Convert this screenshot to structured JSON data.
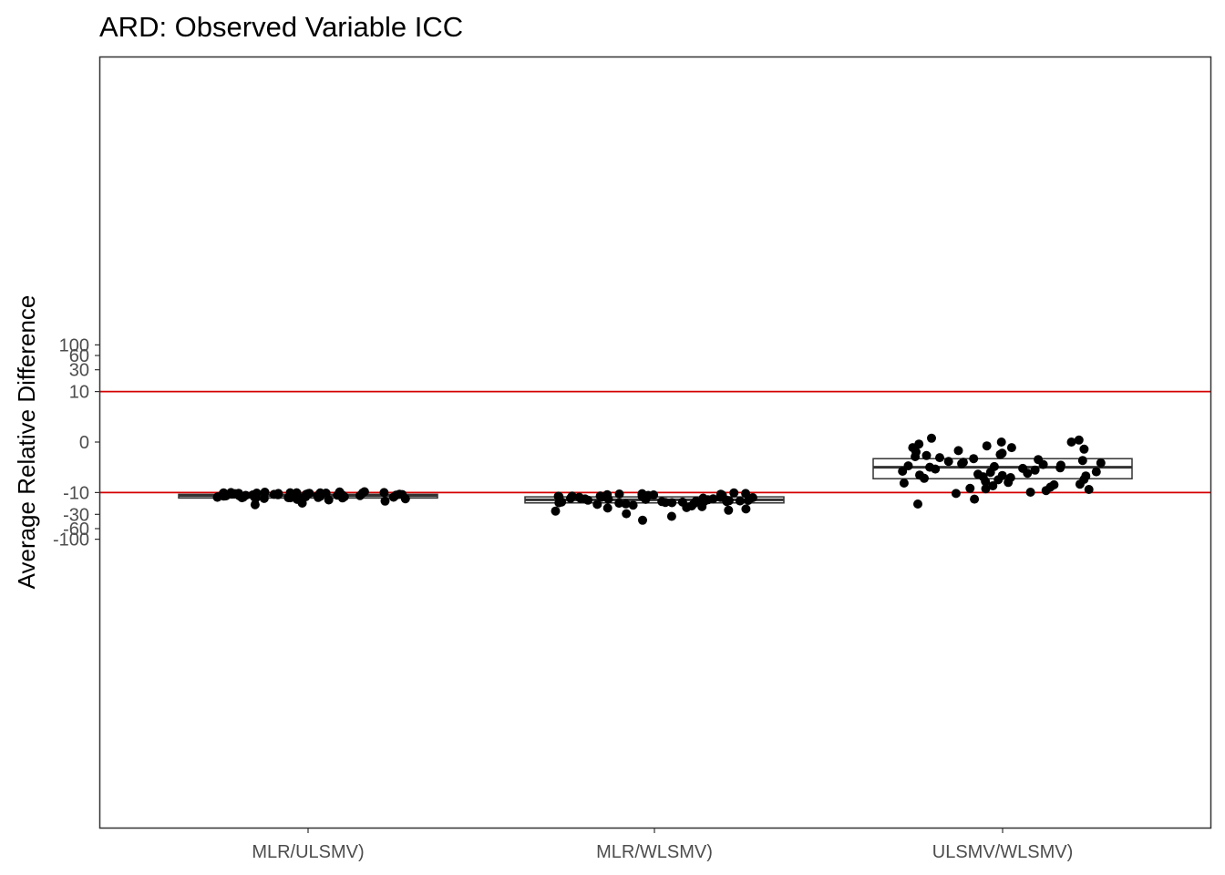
{
  "chart_data": {
    "type": "box",
    "title": "ARD: Observed Variable ICC",
    "ylabel": "Average Relative Difference",
    "xlabel": "",
    "scale": "pseudo-log",
    "ylim": [
      -110,
      110
    ],
    "yticks": [
      -100,
      -60,
      -30,
      -10,
      0,
      10,
      30,
      60,
      100
    ],
    "grid": false,
    "categories": [
      "MLR/ULSMV)",
      "MLR/WLSMV)",
      "ULSMV/WLSMV)"
    ],
    "reference_lines": [
      {
        "y": 10,
        "color": "#d40000"
      },
      {
        "y": -10,
        "color": "#d40000"
      }
    ],
    "boxes": [
      {
        "q1": -12.3,
        "median": -11.7,
        "q3": -11.0
      },
      {
        "q1": -17.0,
        "median": -14.5,
        "q3": -12.5
      },
      {
        "q1": -4.7,
        "median": -2.3,
        "q3": -1.2
      }
    ],
    "points": [
      [
        -11.0,
        -10.2,
        -10.0,
        -10.3,
        -10.1,
        -10.4,
        -10.2,
        -10.0,
        -10.3,
        -10.1,
        -9.8,
        -9.6,
        -9.7,
        -10.5,
        -10.7,
        -11.3,
        -11.5,
        -11.9,
        -12.2,
        -12.5,
        -12.8,
        -12.4,
        -11.4,
        -11.1,
        -10.8,
        -10.6,
        -10.9,
        -11.6,
        -12.1,
        -12.9,
        -13.2,
        -13.6,
        -13.1,
        -13.8,
        -14.2,
        -12.6,
        -11.8,
        -11.0,
        -10.4,
        -10.2,
        -10.5,
        -11.2,
        -12.0,
        -12.7,
        -13.4,
        -15.5,
        -17.2,
        -18.6,
        -14.6,
        -13.0,
        -11.7,
        -10.9,
        -10.6,
        -11.3,
        -12.3,
        -11.9,
        -12.8,
        -13.1,
        -12.4,
        -11.5
      ],
      [
        -10.5,
        -10.8,
        -11.0,
        -11.3,
        -10.6,
        -11.5,
        -11.8,
        -12.2,
        -12.5,
        -12.8,
        -13.3,
        -13.6,
        -14.0,
        -14.5,
        -14.7,
        -15.0,
        -15.4,
        -15.8,
        -16.0,
        -16.3,
        -16.6,
        -16.9,
        -17.3,
        -17.8,
        -18.3,
        -19.0,
        -19.8,
        -20.5,
        -22.0,
        -23.0,
        -25.5,
        -29.0,
        -33.0,
        -40.0,
        -12.0,
        -13.0,
        -14.2,
        -15.2,
        -16.8,
        -11.6,
        -12.7,
        -13.8,
        -10.2,
        -11.2,
        -12.4,
        -13.9,
        -15.6,
        -17.5,
        -21.5,
        -24.5,
        -11.9,
        -12.9,
        -14.8,
        -16.2,
        -13.5,
        -12.1,
        -15.9,
        -10.9
      ],
      [
        0.0,
        0.2,
        0.0,
        -0.3,
        -0.5,
        -0.8,
        -1.0,
        -1.2,
        -1.5,
        -1.8,
        -2.0,
        -2.3,
        -2.6,
        -3.0,
        -3.4,
        -3.8,
        -4.2,
        -4.6,
        -5.0,
        -5.5,
        -6.0,
        -6.6,
        -7.0,
        -7.5,
        -8.0,
        -8.5,
        -9.0,
        -9.8,
        -10.5,
        -14.0,
        -18.0,
        0.1,
        -0.1,
        -0.6,
        -1.1,
        -1.6,
        -2.1,
        -2.5,
        -3.2,
        -3.6,
        -4.4,
        -4.9,
        -5.8,
        -0.2,
        -0.9,
        -1.4,
        -2.8,
        -3.9,
        -0.4,
        -1.3,
        -2.2,
        -3.1,
        -6.4,
        -8.2,
        -0.7,
        -1.9,
        -2.4,
        -4.0,
        -0.3,
        -1.7
      ]
    ],
    "colors": {
      "points": "#000000",
      "box_stroke": "#333333",
      "reference_line": "#d40000",
      "axis": "#333333",
      "tick_label": "#4d4d4d"
    }
  }
}
